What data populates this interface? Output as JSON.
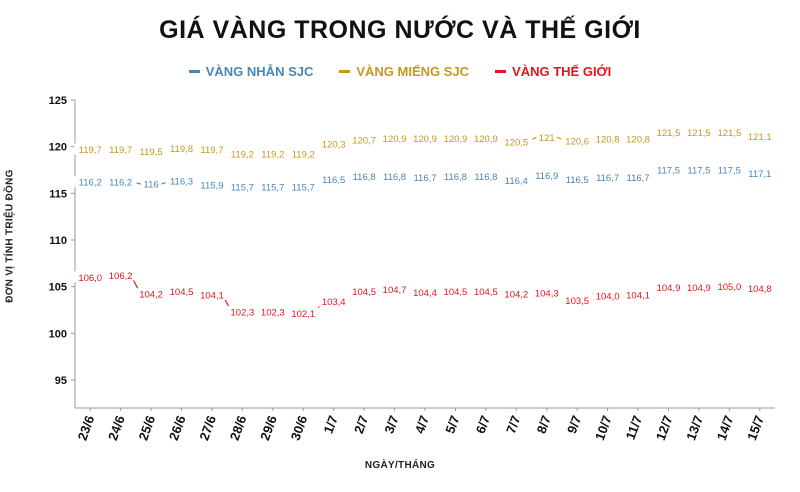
{
  "chart_data": {
    "type": "line",
    "title": "GIÁ VÀNG TRONG NƯỚC VÀ THẾ GIỚI",
    "xlabel": "NGÀY/THÁNG",
    "ylabel": "ĐƠN VỊ TÍNH TRIỆU ĐỒNG",
    "ylim": [
      92,
      125
    ],
    "yticks": [
      "95",
      "100",
      "105",
      "110",
      "115",
      "120",
      "125"
    ],
    "grid": false,
    "legend_position": "top",
    "categories": [
      "23/6",
      "24/6",
      "25/6",
      "26/6",
      "27/6",
      "28/6",
      "29/6",
      "30/6",
      "1/7",
      "2/7",
      "3/7",
      "4/7",
      "5/7",
      "6/7",
      "7/7",
      "8/7",
      "9/7",
      "10/7",
      "11/7",
      "12/7",
      "13/7",
      "14/7",
      "15/7"
    ],
    "series": [
      {
        "name": "VÀNG NHẪN SJC",
        "color": "#4a86b8",
        "values": [
          116.2,
          116.2,
          116,
          116.3,
          115.9,
          115.7,
          115.7,
          115.7,
          116.5,
          116.8,
          116.8,
          116.7,
          116.8,
          116.8,
          116.4,
          116.9,
          116.5,
          116.7,
          116.7,
          117.5,
          117.5,
          117.5,
          117.1
        ],
        "labels": [
          "116,2",
          "116,2",
          "116",
          "116,3",
          "115,9",
          "115,7",
          "115,7",
          "115,7",
          "116,5",
          "116,8",
          "116,8",
          "116,7",
          "116,8",
          "116,8",
          "116,4",
          "116,9",
          "116,5",
          "116,7",
          "116,7",
          "117,5",
          "117,5",
          "117,5",
          "117,1"
        ]
      },
      {
        "name": "VÀNG MIẾNG SJC",
        "color": "#c8981c",
        "values": [
          119.7,
          119.7,
          119.5,
          119.8,
          119.7,
          119.2,
          119.2,
          119.2,
          120.3,
          120.7,
          120.9,
          120.9,
          120.9,
          120.9,
          120.5,
          121,
          120.6,
          120.8,
          120.8,
          121.5,
          121.5,
          121.5,
          121.1
        ],
        "labels": [
          "119,7",
          "119,7",
          "119,5",
          "119,8",
          "119,7",
          "119,2",
          "119,2",
          "119,2",
          "120,3",
          "120,7",
          "120,9",
          "120,9",
          "120,9",
          "120,9",
          "120,5",
          "121",
          "120,6",
          "120,8",
          "120,8",
          "121,5",
          "121,5",
          "121,5",
          "121,1"
        ]
      },
      {
        "name": "VÀNG THẾ GIỚI",
        "color": "#e8141c",
        "values": [
          106.0,
          106.2,
          104.2,
          104.5,
          104.1,
          102.3,
          102.3,
          102.1,
          103.4,
          104.5,
          104.7,
          104.4,
          104.5,
          104.5,
          104.2,
          104.3,
          103.5,
          104.0,
          104.1,
          104.9,
          104.9,
          105.0,
          104.8
        ],
        "labels": [
          "106,0",
          "106,2",
          "104,2",
          "104,5",
          "104,1",
          "102,3",
          "102,3",
          "102,1",
          "103,4",
          "104,5",
          "104,7",
          "104,4",
          "104,5",
          "104,5",
          "104,2",
          "104,3",
          "103,5",
          "104,0",
          "104,1",
          "104,9",
          "104,9",
          "105,0",
          "104,8"
        ]
      }
    ]
  }
}
